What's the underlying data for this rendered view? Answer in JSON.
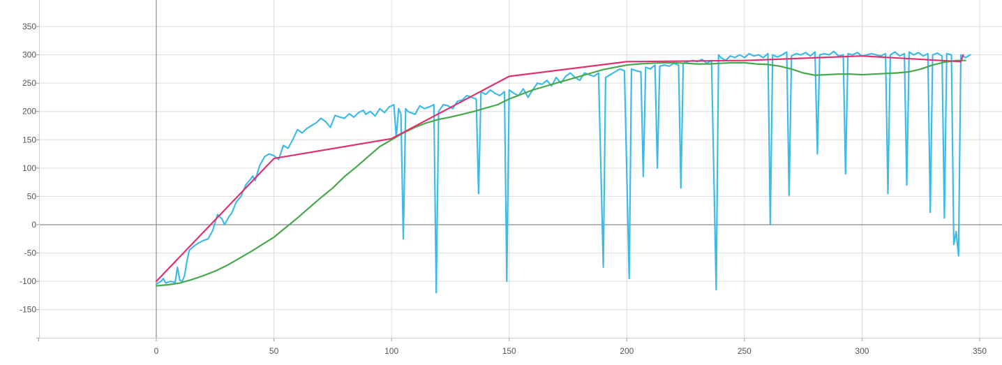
{
  "chart_data": {
    "type": "line",
    "title": "",
    "xlabel": "",
    "ylabel": "",
    "xlim": [
      -50,
      358
    ],
    "ylim": [
      -200,
      385
    ],
    "grid": true,
    "x_ticks": [
      0,
      50,
      100,
      150,
      200,
      250,
      300,
      350
    ],
    "y_ticks": [
      -150,
      -100,
      -50,
      0,
      50,
      100,
      150,
      200,
      250,
      300,
      350
    ],
    "series": [
      {
        "color": "#3dbbe8",
        "points": [
          [
            0,
            -105
          ],
          [
            2,
            -100
          ],
          [
            3,
            -95
          ],
          [
            4,
            -103
          ],
          [
            6,
            -100
          ],
          [
            8,
            -102
          ],
          [
            9,
            -75
          ],
          [
            10,
            -98
          ],
          [
            11,
            -100
          ],
          [
            12,
            -90
          ],
          [
            13,
            -65
          ],
          [
            14,
            -45
          ],
          [
            16,
            -38
          ],
          [
            18,
            -32
          ],
          [
            20,
            -28
          ],
          [
            22,
            -25
          ],
          [
            24,
            -10
          ],
          [
            26,
            18
          ],
          [
            28,
            10
          ],
          [
            29,
            0
          ],
          [
            31,
            15
          ],
          [
            32,
            20
          ],
          [
            34,
            40
          ],
          [
            36,
            50
          ],
          [
            38,
            70
          ],
          [
            40,
            80
          ],
          [
            41,
            86
          ],
          [
            42,
            78
          ],
          [
            44,
            105
          ],
          [
            46,
            120
          ],
          [
            48,
            125
          ],
          [
            50,
            122
          ],
          [
            52,
            115
          ],
          [
            54,
            140
          ],
          [
            56,
            135
          ],
          [
            58,
            150
          ],
          [
            60,
            168
          ],
          [
            62,
            162
          ],
          [
            64,
            170
          ],
          [
            66,
            175
          ],
          [
            68,
            180
          ],
          [
            70,
            188
          ],
          [
            72,
            182
          ],
          [
            74,
            172
          ],
          [
            76,
            193
          ],
          [
            78,
            190
          ],
          [
            80,
            188
          ],
          [
            82,
            196
          ],
          [
            84,
            190
          ],
          [
            86,
            198
          ],
          [
            88,
            202
          ],
          [
            89,
            195
          ],
          [
            91,
            200
          ],
          [
            93,
            192
          ],
          [
            95,
            205
          ],
          [
            97,
            198
          ],
          [
            99,
            208
          ],
          [
            101,
            212
          ],
          [
            102,
            155
          ],
          [
            103,
            205
          ],
          [
            104,
            195
          ],
          [
            105,
            -25
          ],
          [
            106,
            205
          ],
          [
            107,
            200
          ],
          [
            108,
            198
          ],
          [
            110,
            195
          ],
          [
            112,
            210
          ],
          [
            114,
            205
          ],
          [
            116,
            208
          ],
          [
            118,
            212
          ],
          [
            119,
            -120
          ],
          [
            120,
            200
          ],
          [
            122,
            212
          ],
          [
            124,
            210
          ],
          [
            126,
            205
          ],
          [
            128,
            218
          ],
          [
            130,
            220
          ],
          [
            132,
            228
          ],
          [
            134,
            225
          ],
          [
            136,
            222
          ],
          [
            137,
            55
          ],
          [
            138,
            235
          ],
          [
            140,
            230
          ],
          [
            142,
            238
          ],
          [
            144,
            232
          ],
          [
            146,
            228
          ],
          [
            148,
            235
          ],
          [
            149,
            -100
          ],
          [
            150,
            238
          ],
          [
            152,
            232
          ],
          [
            154,
            228
          ],
          [
            156,
            240
          ],
          [
            158,
            225
          ],
          [
            160,
            238
          ],
          [
            162,
            250
          ],
          [
            164,
            248
          ],
          [
            166,
            255
          ],
          [
            168,
            245
          ],
          [
            170,
            260
          ],
          [
            172,
            250
          ],
          [
            174,
            262
          ],
          [
            176,
            268
          ],
          [
            178,
            260
          ],
          [
            180,
            255
          ],
          [
            182,
            268
          ],
          [
            184,
            265
          ],
          [
            186,
            262
          ],
          [
            188,
            268
          ],
          [
            190,
            -75
          ],
          [
            191,
            260
          ],
          [
            193,
            265
          ],
          [
            195,
            270
          ],
          [
            197,
            275
          ],
          [
            199,
            272
          ],
          [
            201,
            -95
          ],
          [
            202,
            275
          ],
          [
            204,
            272
          ],
          [
            206,
            270
          ],
          [
            207,
            85
          ],
          [
            208,
            278
          ],
          [
            210,
            275
          ],
          [
            212,
            282
          ],
          [
            213,
            100
          ],
          [
            214,
            280
          ],
          [
            216,
            282
          ],
          [
            218,
            280
          ],
          [
            220,
            285
          ],
          [
            222,
            282
          ],
          [
            223,
            65
          ],
          [
            224,
            285
          ],
          [
            226,
            288
          ],
          [
            228,
            290
          ],
          [
            230,
            288
          ],
          [
            232,
            292
          ],
          [
            234,
            285
          ],
          [
            236,
            290
          ],
          [
            238,
            -115
          ],
          [
            239,
            300
          ],
          [
            240,
            295
          ],
          [
            242,
            290
          ],
          [
            244,
            298
          ],
          [
            246,
            295
          ],
          [
            248,
            300
          ],
          [
            250,
            295
          ],
          [
            252,
            302
          ],
          [
            254,
            298
          ],
          [
            256,
            300
          ],
          [
            258,
            295
          ],
          [
            260,
            302
          ],
          [
            261,
            0
          ],
          [
            262,
            300
          ],
          [
            264,
            296
          ],
          [
            266,
            300
          ],
          [
            268,
            305
          ],
          [
            269,
            52
          ],
          [
            270,
            298
          ],
          [
            272,
            302
          ],
          [
            274,
            300
          ],
          [
            276,
            304
          ],
          [
            278,
            298
          ],
          [
            280,
            305
          ],
          [
            281,
            125
          ],
          [
            282,
            300
          ],
          [
            284,
            302
          ],
          [
            286,
            300
          ],
          [
            288,
            306
          ],
          [
            290,
            298
          ],
          [
            292,
            300
          ],
          [
            293,
            90
          ],
          [
            294,
            302
          ],
          [
            296,
            300
          ],
          [
            298,
            304
          ],
          [
            300,
            298
          ],
          [
            302,
            300
          ],
          [
            304,
            302
          ],
          [
            306,
            300
          ],
          [
            308,
            298
          ],
          [
            310,
            302
          ],
          [
            311,
            55
          ],
          [
            312,
            300
          ],
          [
            314,
            305
          ],
          [
            316,
            298
          ],
          [
            318,
            302
          ],
          [
            319,
            70
          ],
          [
            320,
            305
          ],
          [
            322,
            300
          ],
          [
            324,
            304
          ],
          [
            326,
            298
          ],
          [
            328,
            302
          ],
          [
            329,
            22
          ],
          [
            330,
            300
          ],
          [
            332,
            303
          ],
          [
            334,
            298
          ],
          [
            335,
            12
          ],
          [
            336,
            302
          ],
          [
            338,
            300
          ],
          [
            339,
            -35
          ],
          [
            340,
            -12
          ],
          [
            341,
            -55
          ],
          [
            342,
            300
          ],
          [
            344,
            295
          ],
          [
            346,
            300
          ]
        ]
      },
      {
        "color": "#46a84a",
        "points": [
          [
            0,
            -108
          ],
          [
            5,
            -106
          ],
          [
            10,
            -103
          ],
          [
            15,
            -97
          ],
          [
            20,
            -90
          ],
          [
            25,
            -82
          ],
          [
            30,
            -72
          ],
          [
            35,
            -60
          ],
          [
            40,
            -48
          ],
          [
            45,
            -35
          ],
          [
            50,
            -22
          ],
          [
            55,
            -5
          ],
          [
            60,
            12
          ],
          [
            65,
            30
          ],
          [
            70,
            48
          ],
          [
            75,
            65
          ],
          [
            80,
            85
          ],
          [
            85,
            102
          ],
          [
            90,
            120
          ],
          [
            95,
            138
          ],
          [
            100,
            150
          ],
          [
            105,
            162
          ],
          [
            110,
            172
          ],
          [
            115,
            180
          ],
          [
            120,
            186
          ],
          [
            125,
            190
          ],
          [
            130,
            195
          ],
          [
            135,
            200
          ],
          [
            140,
            206
          ],
          [
            145,
            212
          ],
          [
            150,
            222
          ],
          [
            155,
            230
          ],
          [
            160,
            238
          ],
          [
            165,
            244
          ],
          [
            170,
            250
          ],
          [
            175,
            256
          ],
          [
            180,
            262
          ],
          [
            185,
            268
          ],
          [
            190,
            274
          ],
          [
            195,
            278
          ],
          [
            200,
            282
          ],
          [
            205,
            284
          ],
          [
            210,
            285
          ],
          [
            215,
            286
          ],
          [
            220,
            286
          ],
          [
            225,
            285
          ],
          [
            230,
            284
          ],
          [
            235,
            284
          ],
          [
            240,
            285
          ],
          [
            245,
            286
          ],
          [
            250,
            286
          ],
          [
            255,
            284
          ],
          [
            260,
            283
          ],
          [
            265,
            280
          ],
          [
            270,
            275
          ],
          [
            275,
            268
          ],
          [
            280,
            264
          ],
          [
            285,
            265
          ],
          [
            290,
            266
          ],
          [
            295,
            266
          ],
          [
            300,
            265
          ],
          [
            305,
            266
          ],
          [
            310,
            267
          ],
          [
            315,
            268
          ],
          [
            320,
            270
          ],
          [
            325,
            275
          ],
          [
            330,
            282
          ],
          [
            335,
            287
          ],
          [
            340,
            290
          ],
          [
            344,
            290
          ]
        ]
      },
      {
        "color": "#e1306c",
        "points": [
          [
            0,
            -100
          ],
          [
            50,
            117
          ],
          [
            100,
            152
          ],
          [
            150,
            262
          ],
          [
            200,
            288
          ],
          [
            250,
            290
          ],
          [
            300,
            298
          ],
          [
            342,
            288
          ],
          [
            343,
            300
          ]
        ]
      }
    ]
  }
}
